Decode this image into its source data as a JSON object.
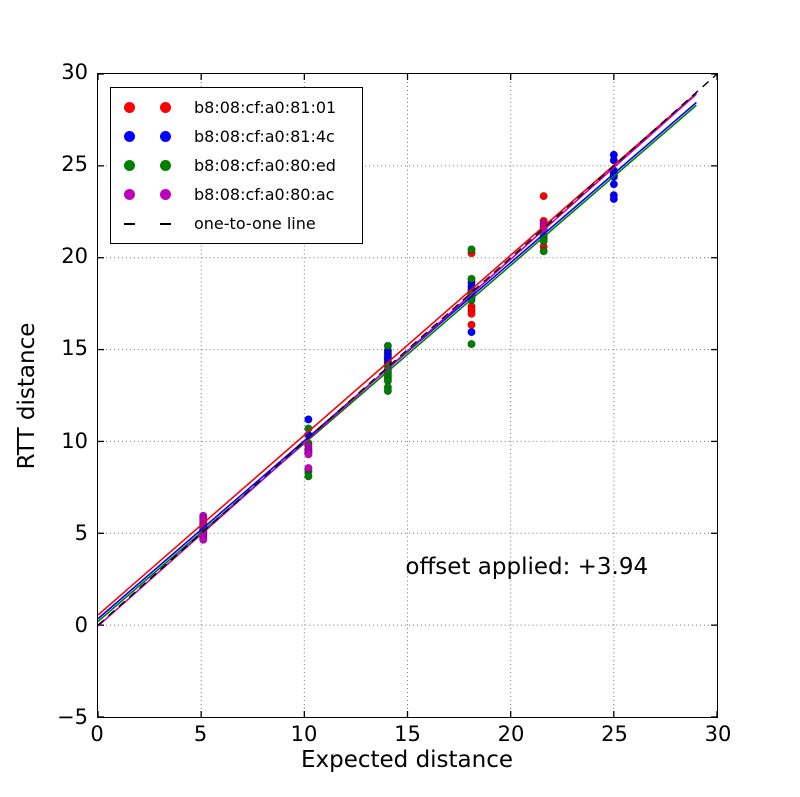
{
  "figure": {
    "background": "#ffffff"
  },
  "legend": {
    "entries": [
      {
        "label": "b8:08:cf:a0:81:01",
        "color": "#ff0000",
        "type": "marker"
      },
      {
        "label": "b8:08:cf:a0:81:4c",
        "color": "#0000ff",
        "type": "marker"
      },
      {
        "label": "b8:08:cf:a0:80:ed",
        "color": "#007f00",
        "type": "marker"
      },
      {
        "label": "b8:08:cf:a0:80:ac",
        "color": "#bf00bf",
        "type": "marker"
      },
      {
        "label": "one-to-one line",
        "color": "#000000",
        "type": "dash"
      }
    ]
  },
  "chart_data": {
    "type": "scatter",
    "title": "",
    "xlabel": "Expected distance",
    "ylabel": "RTT distance",
    "xlim": [
      0,
      30
    ],
    "ylim": [
      -5,
      30
    ],
    "grid": true,
    "legend_position": "upper left",
    "annotation": {
      "text": "offset applied: +3.94",
      "x": 14.85,
      "y": 2.55
    },
    "x_ticks": [
      {
        "v": 0,
        "label": "0"
      },
      {
        "v": 5,
        "label": "5"
      },
      {
        "v": 10,
        "label": "10"
      },
      {
        "v": 15,
        "label": "15"
      },
      {
        "v": 20,
        "label": "20"
      },
      {
        "v": 25,
        "label": "25"
      },
      {
        "v": 30,
        "label": "30"
      }
    ],
    "y_ticks": [
      {
        "v": -5,
        "label": "−5"
      },
      {
        "v": 0,
        "label": "0"
      },
      {
        "v": 5,
        "label": "5"
      },
      {
        "v": 10,
        "label": "10"
      },
      {
        "v": 15,
        "label": "15"
      },
      {
        "v": 20,
        "label": "20"
      },
      {
        "v": 25,
        "label": "25"
      },
      {
        "v": 30,
        "label": "30"
      }
    ],
    "series": [
      {
        "name": "b8:08:cf:a0:81:01",
        "color": "#ff0000",
        "points": [
          [
            14.05,
            14.5
          ],
          [
            18.1,
            20.25
          ],
          [
            18.1,
            18.15
          ],
          [
            18.1,
            17.35
          ],
          [
            18.1,
            17.15
          ],
          [
            18.1,
            16.95
          ],
          [
            18.1,
            16.35
          ],
          [
            21.6,
            23.35
          ],
          [
            21.6,
            22.0
          ],
          [
            21.6,
            20.6
          ]
        ]
      },
      {
        "name": "b8:08:cf:a0:81:4c",
        "color": "#0000ff",
        "points": [
          [
            10.2,
            11.2
          ],
          [
            10.2,
            10.35
          ],
          [
            14.05,
            14.95
          ],
          [
            14.05,
            14.8
          ],
          [
            14.05,
            14.65
          ],
          [
            14.05,
            14.5
          ],
          [
            14.05,
            14.35
          ],
          [
            14.05,
            14.2
          ],
          [
            18.1,
            18.65
          ],
          [
            18.1,
            18.45
          ],
          [
            18.1,
            18.3
          ],
          [
            18.1,
            15.95
          ],
          [
            25.0,
            25.6
          ],
          [
            25.0,
            25.3
          ],
          [
            25.0,
            24.75
          ],
          [
            25.0,
            24.6
          ],
          [
            25.0,
            24.5
          ],
          [
            25.0,
            24.4
          ],
          [
            25.0,
            24.0
          ],
          [
            25.0,
            23.4
          ],
          [
            25.0,
            23.2
          ]
        ]
      },
      {
        "name": "b8:08:cf:a0:80:ed",
        "color": "#007f00",
        "points": [
          [
            10.2,
            10.7
          ],
          [
            10.2,
            9.9
          ],
          [
            10.2,
            8.35
          ],
          [
            10.2,
            8.1
          ],
          [
            14.05,
            15.2
          ],
          [
            14.05,
            14.1
          ],
          [
            14.05,
            13.9
          ],
          [
            14.05,
            13.75
          ],
          [
            14.05,
            13.6
          ],
          [
            14.05,
            13.45
          ],
          [
            14.05,
            13.3
          ],
          [
            14.05,
            12.95
          ],
          [
            14.05,
            12.75
          ],
          [
            18.1,
            20.45
          ],
          [
            18.1,
            18.85
          ],
          [
            18.1,
            18.0
          ],
          [
            18.1,
            17.85
          ],
          [
            18.1,
            17.7
          ],
          [
            18.1,
            15.3
          ],
          [
            21.6,
            21.2
          ],
          [
            21.6,
            21.05
          ],
          [
            21.6,
            20.9
          ],
          [
            21.6,
            20.35
          ]
        ]
      },
      {
        "name": "b8:08:cf:a0:80:ac",
        "color": "#bf00bf",
        "points": [
          [
            5.1,
            5.95
          ],
          [
            5.1,
            5.8
          ],
          [
            5.1,
            5.65
          ],
          [
            5.1,
            5.5
          ],
          [
            5.1,
            5.4
          ],
          [
            5.1,
            5.3
          ],
          [
            5.1,
            5.2
          ],
          [
            5.1,
            5.1
          ],
          [
            5.1,
            5.0
          ],
          [
            5.1,
            4.9
          ],
          [
            5.1,
            4.8
          ],
          [
            5.1,
            4.65
          ],
          [
            10.2,
            9.75
          ],
          [
            10.2,
            9.6
          ],
          [
            10.2,
            9.5
          ],
          [
            10.2,
            9.4
          ],
          [
            10.2,
            9.3
          ],
          [
            10.2,
            8.55
          ],
          [
            21.6,
            21.85
          ],
          [
            21.6,
            21.7
          ],
          [
            21.6,
            21.55
          ]
        ]
      }
    ],
    "fit_lines": [
      {
        "name": "b8:08:cf:a0:81:01",
        "color": "#ff0000",
        "x1": 0,
        "y1": 0.55,
        "x2": 29,
        "y2": 28.95
      },
      {
        "name": "b8:08:cf:a0:81:4c",
        "color": "#0000ff",
        "x1": 0,
        "y1": 0.35,
        "x2": 29,
        "y2": 28.45
      },
      {
        "name": "b8:08:cf:a0:80:ed",
        "color": "#007f00",
        "x1": 0,
        "y1": 0.2,
        "x2": 29,
        "y2": 28.3
      },
      {
        "name": "b8:08:cf:a0:80:ac",
        "color": "#bf00bf",
        "x1": 0,
        "y1": -0.05,
        "x2": 29,
        "y2": 28.9
      }
    ],
    "one_to_one": {
      "label": "one-to-one line",
      "color": "#000000",
      "style": "dashed",
      "x1": 0,
      "y1": 0,
      "x2": 30,
      "y2": 30
    }
  }
}
